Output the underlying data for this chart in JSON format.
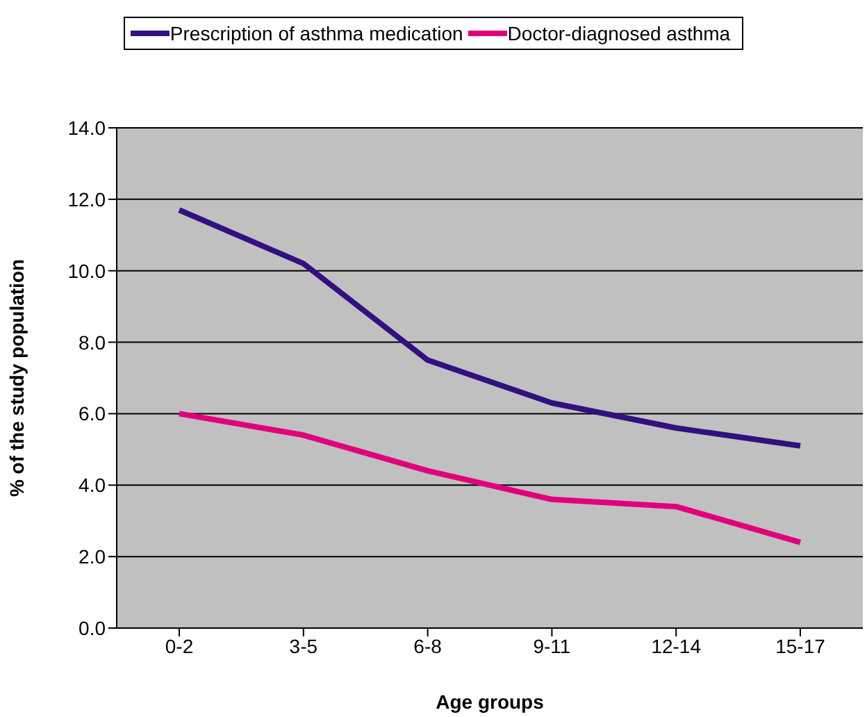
{
  "chart_data": {
    "type": "line",
    "xlabel": "Age groups",
    "ylabel": "% of the study population",
    "categories": [
      "0-2",
      "3-5",
      "6-8",
      "9-11",
      "12-14",
      "15-17"
    ],
    "series": [
      {
        "name": "Prescription of asthma medication",
        "color": "#330f80",
        "values": [
          11.7,
          10.2,
          7.5,
          6.3,
          5.6,
          5.1
        ]
      },
      {
        "name": "Doctor-diagnosed asthma",
        "color": "#e0007a",
        "values": [
          6.0,
          5.4,
          4.4,
          3.6,
          3.4,
          2.4
        ]
      }
    ],
    "ylim": [
      0,
      14
    ],
    "yticks": [
      {
        "value": 0,
        "label": "0.0"
      },
      {
        "value": 2,
        "label": "2.0"
      },
      {
        "value": 4,
        "label": "4.0"
      },
      {
        "value": 6,
        "label": "6.0"
      },
      {
        "value": 8,
        "label": "8.0"
      },
      {
        "value": 10,
        "label": "10.0"
      },
      {
        "value": 12,
        "label": "12.0"
      },
      {
        "value": 14,
        "label": "14.0"
      }
    ],
    "grid": "y",
    "legend": "top",
    "marker": "none",
    "line_style": "solid"
  }
}
